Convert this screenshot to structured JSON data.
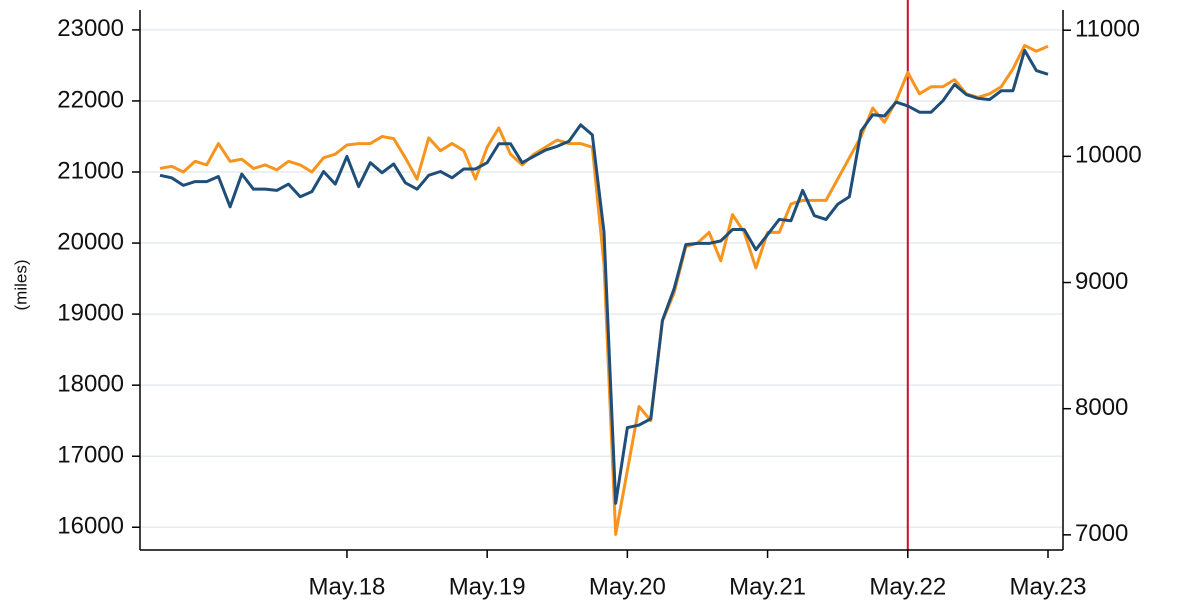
{
  "chart_data": {
    "type": "line",
    "y_label": "(miles)",
    "categories": [
      null,
      null,
      null,
      null,
      null,
      null,
      null,
      null,
      null,
      null,
      null,
      null,
      null,
      null,
      null,
      null,
      "May.18",
      null,
      null,
      null,
      null,
      null,
      null,
      null,
      null,
      null,
      null,
      null,
      "May.19",
      null,
      null,
      null,
      null,
      null,
      null,
      null,
      null,
      null,
      null,
      null,
      "May.20",
      null,
      null,
      null,
      null,
      null,
      null,
      null,
      null,
      null,
      null,
      null,
      "May.21",
      null,
      null,
      null,
      null,
      null,
      null,
      null,
      null,
      null,
      null,
      null,
      "May.22",
      null,
      null,
      null,
      null,
      null,
      null,
      null,
      null,
      null,
      null,
      null,
      "May.23"
    ],
    "series": [
      {
        "color": "#f7941d",
        "axis": "y",
        "values": [
          21050,
          21080,
          21000,
          21150,
          21100,
          21400,
          21150,
          21180,
          21050,
          21100,
          21030,
          21150,
          21100,
          21000,
          21200,
          21250,
          21380,
          21400,
          21400,
          21500,
          21470,
          21200,
          20900,
          21480,
          21300,
          21400,
          21300,
          20900,
          21350,
          21620,
          21250,
          21100,
          21250,
          21350,
          21450,
          21400,
          21400,
          21350,
          19700,
          15900,
          16800,
          17700,
          17500,
          18900,
          19300,
          19950,
          20000,
          20150,
          19750,
          20400,
          20150,
          19650,
          20150,
          20150,
          20550,
          20600,
          20600,
          20600,
          20900,
          21200,
          21500,
          21900,
          21700,
          22000,
          22400,
          22100,
          22200,
          22200,
          22300,
          22100,
          22050,
          22100,
          22200,
          22450,
          22780,
          22700,
          22770
        ]
      },
      {
        "color": "#1f4e79",
        "axis": "y2",
        "values": [
          9850,
          9830,
          9770,
          9800,
          9800,
          9840,
          9600,
          9860,
          9740,
          9740,
          9730,
          9780,
          9680,
          9720,
          9880,
          9780,
          10000,
          9760,
          9950,
          9870,
          9940,
          9790,
          9740,
          9850,
          9880,
          9830,
          9900,
          9900,
          9950,
          10100,
          10100,
          9950,
          10000,
          10050,
          10080,
          10120,
          10250,
          10170,
          9400,
          7250,
          7850,
          7870,
          7920,
          8700,
          8950,
          9300,
          9310,
          9310,
          9330,
          9420,
          9420,
          9260,
          9380,
          9500,
          9490,
          9730,
          9530,
          9500,
          9620,
          9680,
          10200,
          10330,
          10320,
          10430,
          10400,
          10350,
          10350,
          10440,
          10570,
          10490,
          10460,
          10450,
          10520,
          10520,
          10840,
          10680,
          10650
        ]
      }
    ],
    "ylim": [
      15680,
      23280
    ],
    "yticks": [
      16000,
      17000,
      18000,
      19000,
      20000,
      21000,
      22000,
      23000
    ],
    "y2lim": [
      6880,
      11160
    ],
    "y2ticks": [
      7000,
      8000,
      9000,
      10000,
      11000
    ],
    "grid": true,
    "vline": {
      "x": "May.22",
      "color": "#c8102e"
    }
  }
}
